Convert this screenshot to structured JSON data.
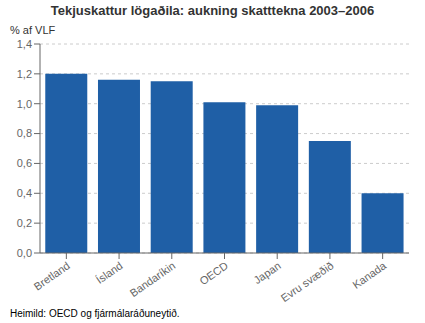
{
  "chart_data": {
    "type": "bar",
    "title": "Tekjuskattur lögaðila: aukning skatttekna 2003–2006",
    "ylabel": "% af VLF",
    "categories": [
      "Bretland",
      "Ísland",
      "Bandaríkin",
      "OECD",
      "Japan",
      "Evru svæðið",
      "Kanada"
    ],
    "values": [
      1.2,
      1.16,
      1.15,
      1.01,
      0.99,
      0.75,
      0.4
    ],
    "color": "#1f5fa6",
    "ylim": [
      0,
      1.4
    ],
    "yticks": [
      {
        "value": 0.0,
        "label": "0,0"
      },
      {
        "value": 0.2,
        "label": "0,2"
      },
      {
        "value": 0.4,
        "label": "0,4"
      },
      {
        "value": 0.6,
        "label": "0,6"
      },
      {
        "value": 0.8,
        "label": "0,8"
      },
      {
        "value": 1.0,
        "label": "1,0"
      },
      {
        "value": 1.2,
        "label": "1,2"
      },
      {
        "value": 1.4,
        "label": "1,4"
      }
    ],
    "grid": true,
    "footnote": "Heimild: OECD og fjármálaráðuneytið."
  }
}
